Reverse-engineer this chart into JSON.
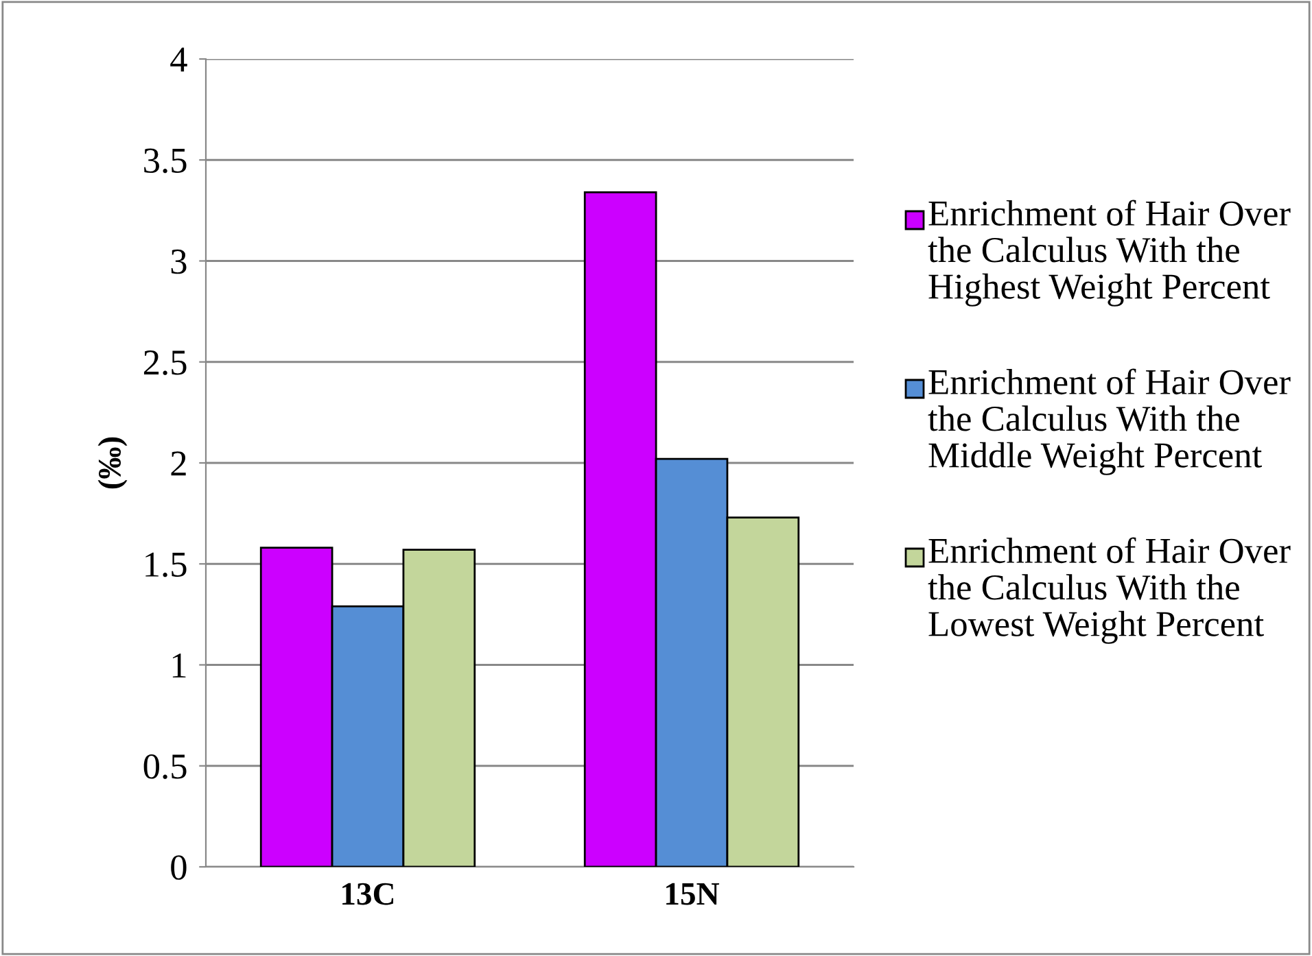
{
  "chart_data": {
    "type": "bar",
    "ylabel": "(‰)",
    "categories": [
      "13C",
      "15N"
    ],
    "series": [
      {
        "name": "Enrichment of Hair Over the Calculus With the Highest Weight Percent",
        "color": "#cc00ff",
        "values": [
          1.58,
          3.34
        ]
      },
      {
        "name": "Enrichment of Hair Over the Calculus With the Middle Weight Percent",
        "color": "#558ed5",
        "values": [
          1.29,
          2.02
        ]
      },
      {
        "name": "Enrichment of Hair Over the Calculus With the Lowest Weight Percent",
        "color": "#c3d69b",
        "values": [
          1.57,
          1.73
        ]
      }
    ],
    "ylim": [
      0,
      4
    ],
    "yticks": [
      0,
      0.5,
      1,
      1.5,
      2,
      2.5,
      3,
      3.5,
      4
    ],
    "grid": "y",
    "legend": "right"
  }
}
